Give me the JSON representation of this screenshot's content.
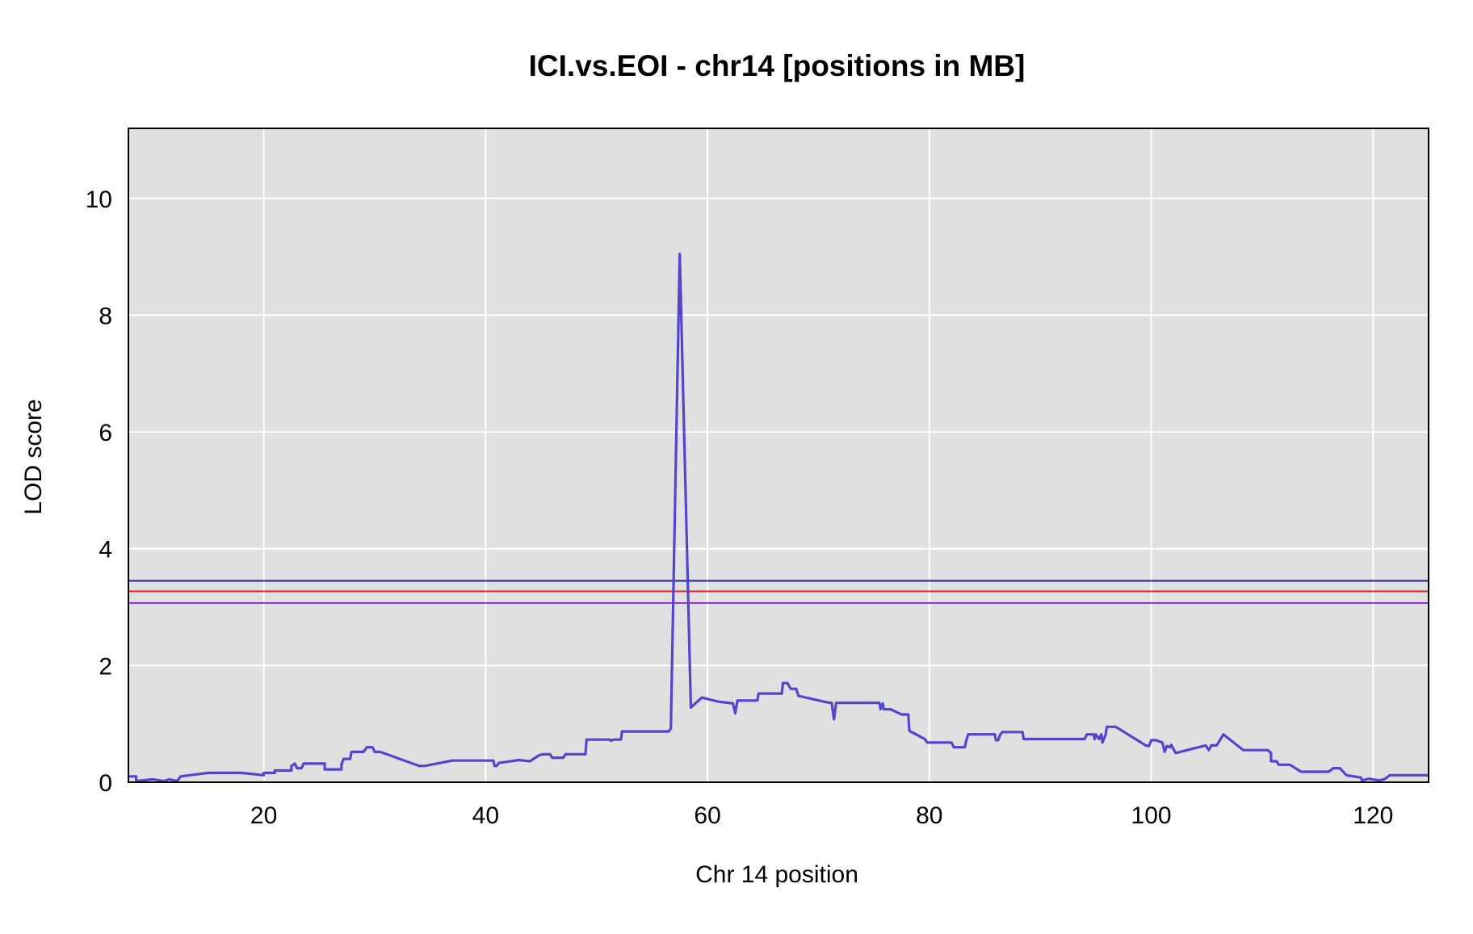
{
  "chart_data": {
    "type": "line",
    "title": "ICI.vs.EOI - chr14 [positions in MB]",
    "xlabel": "Chr 14 position",
    "ylabel": "LOD score",
    "xlim": [
      7.8,
      125
    ],
    "ylim": [
      0,
      11.2
    ],
    "xticks": [
      20,
      40,
      60,
      80,
      100,
      120
    ],
    "yticks": [
      0,
      2,
      4,
      6,
      8,
      10
    ],
    "grid": true,
    "background": "#e0e0e0",
    "thresholds": [
      {
        "value": 3.45,
        "color": "#1a1ab0"
      },
      {
        "value": 3.27,
        "color": "#e02020"
      },
      {
        "value": 3.07,
        "color": "#9a30d8"
      }
    ],
    "series": [
      {
        "color": "#5544cc",
        "points": [
          [
            7.8,
            0.1
          ],
          [
            8.5,
            0.1
          ],
          [
            8.5,
            0.02
          ],
          [
            10,
            0.05
          ],
          [
            11,
            0.02
          ],
          [
            11.5,
            0.05
          ],
          [
            12.2,
            0.02
          ],
          [
            12.5,
            0.1
          ],
          [
            15,
            0.16
          ],
          [
            18,
            0.16
          ],
          [
            20,
            0.12
          ],
          [
            20,
            0.16
          ],
          [
            21,
            0.16
          ],
          [
            21,
            0.2
          ],
          [
            22.5,
            0.2
          ],
          [
            22.5,
            0.28
          ],
          [
            22.8,
            0.32
          ],
          [
            23,
            0.24
          ],
          [
            23.4,
            0.24
          ],
          [
            23.6,
            0.32
          ],
          [
            25.5,
            0.32
          ],
          [
            25.5,
            0.22
          ],
          [
            27,
            0.22
          ],
          [
            27,
            0.3
          ],
          [
            27.2,
            0.4
          ],
          [
            27.8,
            0.4
          ],
          [
            27.9,
            0.52
          ],
          [
            29,
            0.52
          ],
          [
            29.3,
            0.6
          ],
          [
            29.8,
            0.6
          ],
          [
            30,
            0.52
          ],
          [
            30.5,
            0.52
          ],
          [
            34,
            0.28
          ],
          [
            34.5,
            0.28
          ],
          [
            37,
            0.37
          ],
          [
            40.7,
            0.37
          ],
          [
            40.8,
            0.28
          ],
          [
            41,
            0.28
          ],
          [
            41.2,
            0.33
          ],
          [
            43,
            0.38
          ],
          [
            44,
            0.36
          ],
          [
            44.8,
            0.46
          ],
          [
            45.2,
            0.48
          ],
          [
            45.8,
            0.48
          ],
          [
            46,
            0.42
          ],
          [
            47,
            0.42
          ],
          [
            47.2,
            0.48
          ],
          [
            49,
            0.48
          ],
          [
            49.1,
            0.73
          ],
          [
            51.2,
            0.73
          ],
          [
            51.3,
            0.71
          ],
          [
            51.5,
            0.73
          ],
          [
            52.2,
            0.73
          ],
          [
            52.3,
            0.87
          ],
          [
            56,
            0.87
          ],
          [
            56.5,
            0.87
          ],
          [
            56.7,
            0.92
          ],
          [
            57.5,
            9.05
          ],
          [
            58.5,
            1.28
          ],
          [
            59.5,
            1.45
          ],
          [
            61,
            1.38
          ],
          [
            62.3,
            1.35
          ],
          [
            62.5,
            1.18
          ],
          [
            62.7,
            1.4
          ],
          [
            64.5,
            1.4
          ],
          [
            64.6,
            1.52
          ],
          [
            66.7,
            1.52
          ],
          [
            66.8,
            1.7
          ],
          [
            67.2,
            1.7
          ],
          [
            67.5,
            1.6
          ],
          [
            68,
            1.6
          ],
          [
            68.2,
            1.48
          ],
          [
            70.5,
            1.38
          ],
          [
            71,
            1.36
          ],
          [
            71.2,
            1.36
          ],
          [
            71.4,
            1.08
          ],
          [
            71.6,
            1.36
          ],
          [
            75.5,
            1.36
          ],
          [
            75.6,
            1.25
          ],
          [
            75.8,
            1.35
          ],
          [
            75.9,
            1.25
          ],
          [
            76.5,
            1.25
          ],
          [
            77.5,
            1.16
          ],
          [
            78.1,
            1.16
          ],
          [
            78.2,
            0.88
          ],
          [
            79.6,
            0.74
          ],
          [
            79.8,
            0.68
          ],
          [
            82,
            0.68
          ],
          [
            82.2,
            0.6
          ],
          [
            83.2,
            0.6
          ],
          [
            83.3,
            0.7
          ],
          [
            83.5,
            0.82
          ],
          [
            85.9,
            0.82
          ],
          [
            86,
            0.72
          ],
          [
            86.2,
            0.72
          ],
          [
            86.4,
            0.82
          ],
          [
            86.6,
            0.86
          ],
          [
            88.4,
            0.86
          ],
          [
            88.5,
            0.74
          ],
          [
            94,
            0.74
          ],
          [
            94.2,
            0.82
          ],
          [
            94.8,
            0.82
          ],
          [
            94.9,
            0.74
          ],
          [
            95,
            0.82
          ],
          [
            95.3,
            0.74
          ],
          [
            95.5,
            0.82
          ],
          [
            95.6,
            0.68
          ],
          [
            95.9,
            0.82
          ],
          [
            96,
            0.95
          ],
          [
            96.8,
            0.95
          ],
          [
            99.5,
            0.63
          ],
          [
            99.8,
            0.62
          ],
          [
            100,
            0.72
          ],
          [
            100.4,
            0.72
          ],
          [
            101,
            0.68
          ],
          [
            101.2,
            0.52
          ],
          [
            101.4,
            0.62
          ],
          [
            101.7,
            0.6
          ],
          [
            101.8,
            0.64
          ],
          [
            102.2,
            0.5
          ],
          [
            104.9,
            0.63
          ],
          [
            105.2,
            0.55
          ],
          [
            105.4,
            0.63
          ],
          [
            105.9,
            0.63
          ],
          [
            106.5,
            0.82
          ],
          [
            108.3,
            0.55
          ],
          [
            110.5,
            0.55
          ],
          [
            110.8,
            0.5
          ],
          [
            110.8,
            0.36
          ],
          [
            111.3,
            0.36
          ],
          [
            111.5,
            0.3
          ],
          [
            112.5,
            0.3
          ],
          [
            113.5,
            0.18
          ],
          [
            116,
            0.18
          ],
          [
            116.4,
            0.24
          ],
          [
            117,
            0.24
          ],
          [
            117.6,
            0.12
          ],
          [
            118.9,
            0.08
          ],
          [
            119,
            0.03
          ],
          [
            119.6,
            0.06
          ],
          [
            120.6,
            0.03
          ],
          [
            121.1,
            0.06
          ],
          [
            121.5,
            0.12
          ],
          [
            125,
            0.12
          ]
        ]
      }
    ]
  }
}
